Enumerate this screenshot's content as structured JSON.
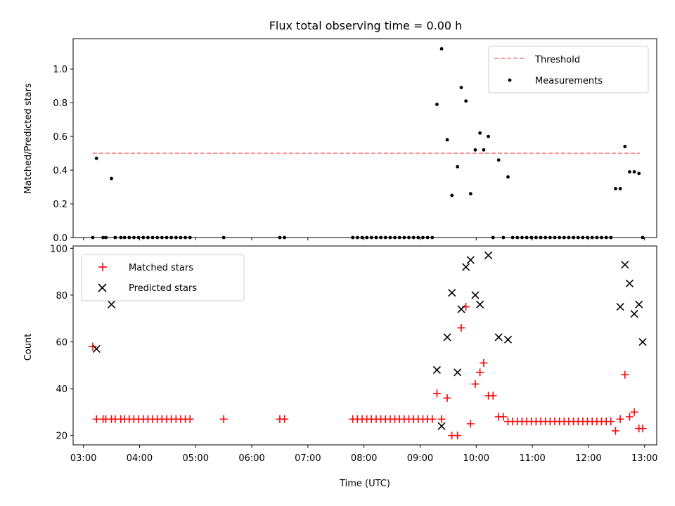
{
  "chart_data": [
    {
      "type": "scatter",
      "title": "Flux total observing time = 0.00 h",
      "xlabel": "",
      "ylabel": "Matched/Predicted stars",
      "xlim": [
        "02:49",
        "13:13"
      ],
      "ylim": [
        0,
        1.18
      ],
      "yticks": [
        0.0,
        0.2,
        0.4,
        0.6,
        0.8,
        1.0
      ],
      "ytick_labels": [
        "0.0",
        "0.2",
        "0.4",
        "0.6",
        "0.8",
        "1.0"
      ],
      "grid": false,
      "legend_position": "top-right",
      "threshold": {
        "name": "Threshold",
        "value": 0.5,
        "x": [
          "03:10",
          "12:55"
        ],
        "color": "#ff7f7f",
        "style": "dashed"
      },
      "series": [
        {
          "name": "Measurements",
          "marker": "dot",
          "color": "#000000",
          "x": [
            "03:10",
            "03:14",
            "03:21",
            "03:24",
            "03:30",
            "03:34",
            "03:40",
            "03:44",
            "03:49",
            "03:54",
            "03:59",
            "04:04",
            "04:09",
            "04:14",
            "04:19",
            "04:24",
            "04:29",
            "04:34",
            "04:39",
            "04:44",
            "04:49",
            "04:54",
            "05:30",
            "06:30",
            "06:35",
            "07:48",
            "07:53",
            "07:58",
            "08:03",
            "08:08",
            "08:13",
            "08:18",
            "08:23",
            "08:28",
            "08:33",
            "08:38",
            "08:43",
            "08:48",
            "08:53",
            "08:58",
            "09:03",
            "09:08",
            "09:13",
            "09:18",
            "09:23",
            "09:29",
            "09:34",
            "09:40",
            "09:44",
            "09:49",
            "09:54",
            "09:59",
            "10:04",
            "10:08",
            "10:13",
            "10:18",
            "10:24",
            "10:29",
            "10:34",
            "10:39",
            "10:44",
            "10:49",
            "10:54",
            "10:59",
            "11:04",
            "11:09",
            "11:14",
            "11:19",
            "11:24",
            "11:29",
            "11:34",
            "11:39",
            "11:44",
            "11:49",
            "11:54",
            "11:59",
            "12:04",
            "12:09",
            "12:14",
            "12:19",
            "12:24",
            "12:29",
            "12:34",
            "12:39",
            "12:44",
            "12:49",
            "12:54",
            "12:58"
          ],
          "y": [
            0,
            0.47,
            0,
            0,
            0.35,
            0,
            0,
            0,
            0,
            0,
            0,
            0,
            0,
            0,
            0,
            0,
            0,
            0,
            0,
            0,
            0,
            0,
            0,
            0,
            0,
            0,
            0,
            0,
            0,
            0,
            0,
            0,
            0,
            0,
            0,
            0,
            0,
            0,
            0,
            0,
            0,
            0,
            0,
            0.79,
            1.12,
            0.58,
            0.25,
            0.42,
            0.89,
            0.81,
            0.26,
            0.52,
            0.62,
            0.52,
            0.6,
            0,
            0.46,
            0,
            0.36,
            0,
            0,
            0,
            0,
            0,
            0,
            0,
            0,
            0,
            0,
            0,
            0,
            0,
            0,
            0,
            0,
            0,
            0,
            0,
            0,
            0,
            0,
            0.29,
            0.29,
            0.54,
            0.39,
            0.39,
            0.38,
            0
          ]
        }
      ]
    },
    {
      "type": "scatter",
      "title": "",
      "xlabel": "Time (UTC)",
      "ylabel": "Count",
      "xlim": [
        "02:49",
        "13:13"
      ],
      "xticks": [
        "03:00",
        "04:00",
        "05:00",
        "06:00",
        "07:00",
        "08:00",
        "09:00",
        "10:00",
        "11:00",
        "12:00",
        "13:00"
      ],
      "ylim": [
        16,
        101
      ],
      "yticks": [
        20,
        40,
        60,
        80,
        100
      ],
      "ytick_labels": [
        "20",
        "40",
        "60",
        "80",
        "100"
      ],
      "grid": false,
      "legend_position": "top-left",
      "series": [
        {
          "name": "Matched stars",
          "marker": "plus",
          "color": "#ff0000",
          "x": [
            "03:10",
            "03:14",
            "03:21",
            "03:24",
            "03:30",
            "03:34",
            "03:40",
            "03:44",
            "03:49",
            "03:54",
            "03:59",
            "04:04",
            "04:09",
            "04:14",
            "04:19",
            "04:24",
            "04:29",
            "04:34",
            "04:39",
            "04:44",
            "04:49",
            "04:54",
            "05:30",
            "06:30",
            "06:35",
            "07:48",
            "07:53",
            "07:58",
            "08:03",
            "08:08",
            "08:13",
            "08:18",
            "08:23",
            "08:28",
            "08:33",
            "08:38",
            "08:43",
            "08:48",
            "08:53",
            "08:58",
            "09:03",
            "09:08",
            "09:13",
            "09:18",
            "09:23",
            "09:29",
            "09:34",
            "09:40",
            "09:44",
            "09:49",
            "09:54",
            "09:59",
            "10:04",
            "10:08",
            "10:13",
            "10:18",
            "10:24",
            "10:29",
            "10:34",
            "10:39",
            "10:44",
            "10:49",
            "10:54",
            "10:59",
            "11:04",
            "11:09",
            "11:14",
            "11:19",
            "11:24",
            "11:29",
            "11:34",
            "11:39",
            "11:44",
            "11:49",
            "11:54",
            "11:59",
            "12:04",
            "12:09",
            "12:14",
            "12:19",
            "12:24",
            "12:29",
            "12:34",
            "12:39",
            "12:44",
            "12:49",
            "12:54",
            "12:58"
          ],
          "y": [
            58,
            27,
            27,
            27,
            27,
            27,
            27,
            27,
            27,
            27,
            27,
            27,
            27,
            27,
            27,
            27,
            27,
            27,
            27,
            27,
            27,
            27,
            27,
            27,
            27,
            27,
            27,
            27,
            27,
            27,
            27,
            27,
            27,
            27,
            27,
            27,
            27,
            27,
            27,
            27,
            27,
            27,
            27,
            38,
            27,
            36,
            20,
            20,
            66,
            75,
            25,
            42,
            47,
            51,
            37,
            37,
            28,
            28,
            26,
            26,
            26,
            26,
            26,
            26,
            26,
            26,
            26,
            26,
            26,
            26,
            26,
            26,
            26,
            26,
            26,
            26,
            26,
            26,
            26,
            26,
            26,
            22,
            27,
            46,
            28,
            30,
            23,
            23
          ]
        },
        {
          "name": "Predicted stars",
          "marker": "x",
          "color": "#000000",
          "x": [
            "03:14",
            "03:30",
            "09:18",
            "09:23",
            "09:29",
            "09:34",
            "09:40",
            "09:44",
            "09:49",
            "09:54",
            "09:59",
            "10:04",
            "10:13",
            "10:24",
            "10:34",
            "12:34",
            "12:39",
            "12:44",
            "12:49",
            "12:54",
            "12:58"
          ],
          "y": [
            57,
            76,
            48,
            24,
            62,
            81,
            47,
            74,
            92,
            95,
            80,
            76,
            97,
            62,
            61,
            75,
            93,
            85,
            72,
            76,
            60
          ]
        }
      ]
    }
  ]
}
